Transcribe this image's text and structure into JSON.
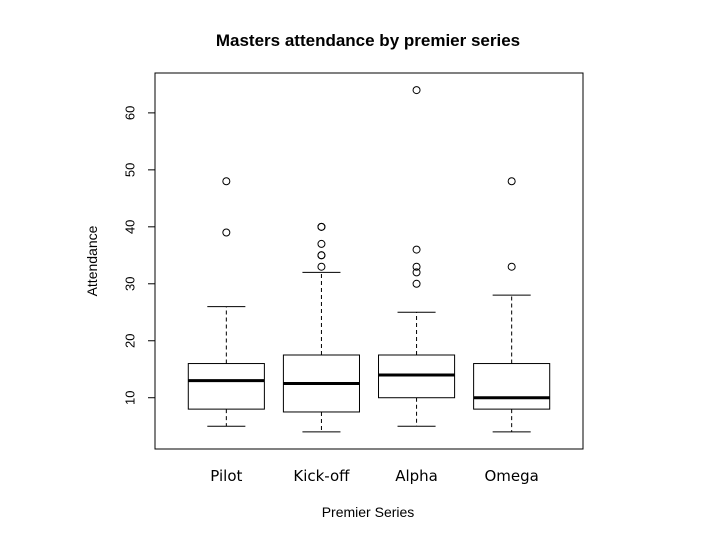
{
  "chart_data": {
    "type": "boxplot",
    "title": "Masters attendance by premier series",
    "xlabel": "Premier Series",
    "ylabel": "Attendance",
    "ylim": [
      1,
      67
    ],
    "yticks": [
      10,
      20,
      30,
      40,
      50,
      60
    ],
    "grid": false,
    "categories": [
      "Pilot",
      "Kick-off",
      "Alpha",
      "Omega"
    ],
    "boxes": [
      {
        "category": "Pilot",
        "whisker_low": 5,
        "q1": 8,
        "median": 13,
        "q3": 16,
        "whisker_high": 26,
        "outliers": [
          39,
          48
        ]
      },
      {
        "category": "Kick-off",
        "whisker_low": 4,
        "q1": 7.5,
        "median": 12.5,
        "q3": 17.5,
        "whisker_high": 32,
        "outliers": [
          33,
          35,
          35,
          37,
          40,
          40
        ]
      },
      {
        "category": "Alpha",
        "whisker_low": 5,
        "q1": 10,
        "median": 14,
        "q3": 17.5,
        "whisker_high": 25,
        "outliers": [
          30,
          32,
          33,
          36,
          64
        ]
      },
      {
        "category": "Omega",
        "whisker_low": 4,
        "q1": 8,
        "median": 10,
        "q3": 16,
        "whisker_high": 28,
        "outliers": [
          33,
          48
        ]
      }
    ]
  }
}
